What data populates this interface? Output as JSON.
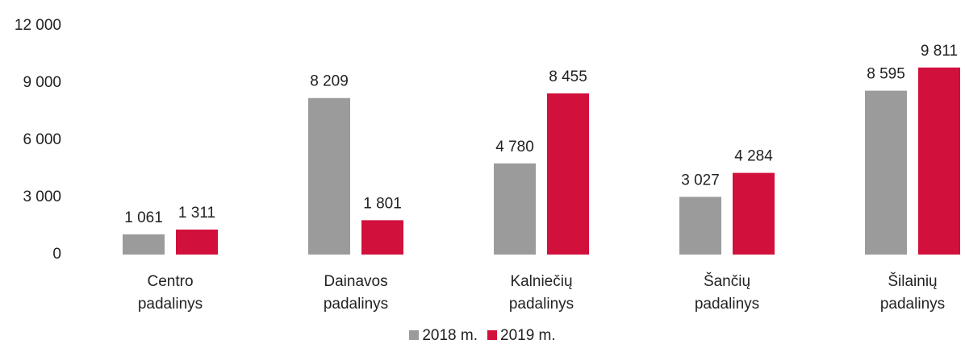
{
  "chart_data": {
    "type": "bar",
    "categories": [
      "Centro padalinys",
      "Dainavos padalinys",
      "Kalniečių padalinys",
      "Šančių padalinys",
      "Šilainių padalinys"
    ],
    "series": [
      {
        "name": "2018 m.",
        "color": "#9b9b9b",
        "values": [
          1061,
          8209,
          4780,
          3027,
          8595
        ],
        "value_labels": [
          "1 061",
          "8 209",
          "4 780",
          "3 027",
          "8 595"
        ]
      },
      {
        "name": "2019 m.",
        "color": "#d2103c",
        "values": [
          1311,
          1801,
          8455,
          4284,
          9811
        ],
        "value_labels": [
          "1 311",
          "1 801",
          "8 455",
          "4 284",
          "9 811"
        ]
      }
    ],
    "ylim": [
      0,
      12000
    ],
    "yticks": [
      0,
      {
        "value": 3000,
        "label": "3 000"
      },
      {
        "value": 6000,
        "label": "6 000"
      },
      {
        "value": 9000,
        "label": "9 000"
      },
      {
        "value": 12000,
        "label": "12 000"
      }
    ],
    "grid": false
  }
}
